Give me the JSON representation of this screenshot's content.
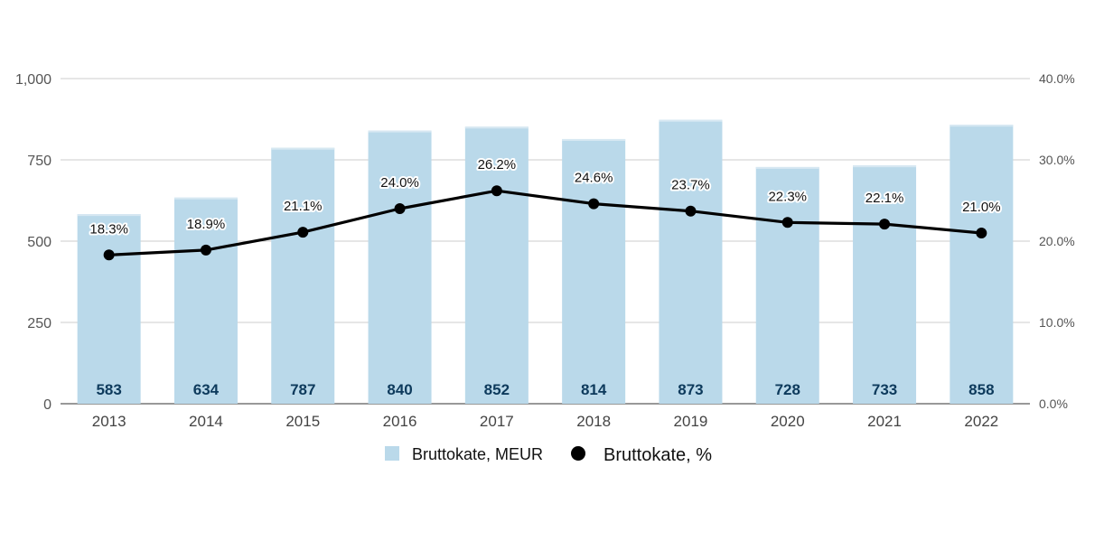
{
  "chart_data": {
    "type": "bar",
    "categories": [
      "2013",
      "2014",
      "2015",
      "2016",
      "2017",
      "2018",
      "2019",
      "2020",
      "2021",
      "2022"
    ],
    "series": [
      {
        "name": "Bruttokate, MEUR",
        "type": "bar",
        "axis": "left",
        "values": [
          583,
          634,
          787,
          840,
          852,
          814,
          873,
          728,
          733,
          858
        ],
        "labels": [
          "583",
          "634",
          "787",
          "840",
          "852",
          "814",
          "873",
          "728",
          "733",
          "858"
        ],
        "color": "#bad9ea"
      },
      {
        "name": "Bruttokate, %",
        "type": "line",
        "axis": "right",
        "values": [
          18.3,
          18.9,
          21.1,
          24.0,
          26.2,
          24.6,
          23.7,
          22.3,
          22.1,
          21.0
        ],
        "labels": [
          "18.3%",
          "18.9%",
          "21.1%",
          "24.0%",
          "26.2%",
          "24.6%",
          "23.7%",
          "22.3%",
          "22.1%",
          "21.0%"
        ],
        "color": "#000000"
      }
    ],
    "y_left": {
      "ylim": [
        0,
        1000
      ],
      "ticks": [
        0,
        250,
        500,
        750,
        1000
      ],
      "tick_labels": [
        "0",
        "250",
        "500",
        "750",
        "1,000"
      ]
    },
    "y_right": {
      "ylim": [
        0,
        40
      ],
      "ticks": [
        0,
        10,
        20,
        30,
        40
      ],
      "tick_labels": [
        "0.0%",
        "10.0%",
        "20.0%",
        "30.0%",
        "40.0%"
      ]
    },
    "grid": true,
    "legend_position": "bottom",
    "title": "",
    "xlabel": "",
    "ylabel": ""
  }
}
